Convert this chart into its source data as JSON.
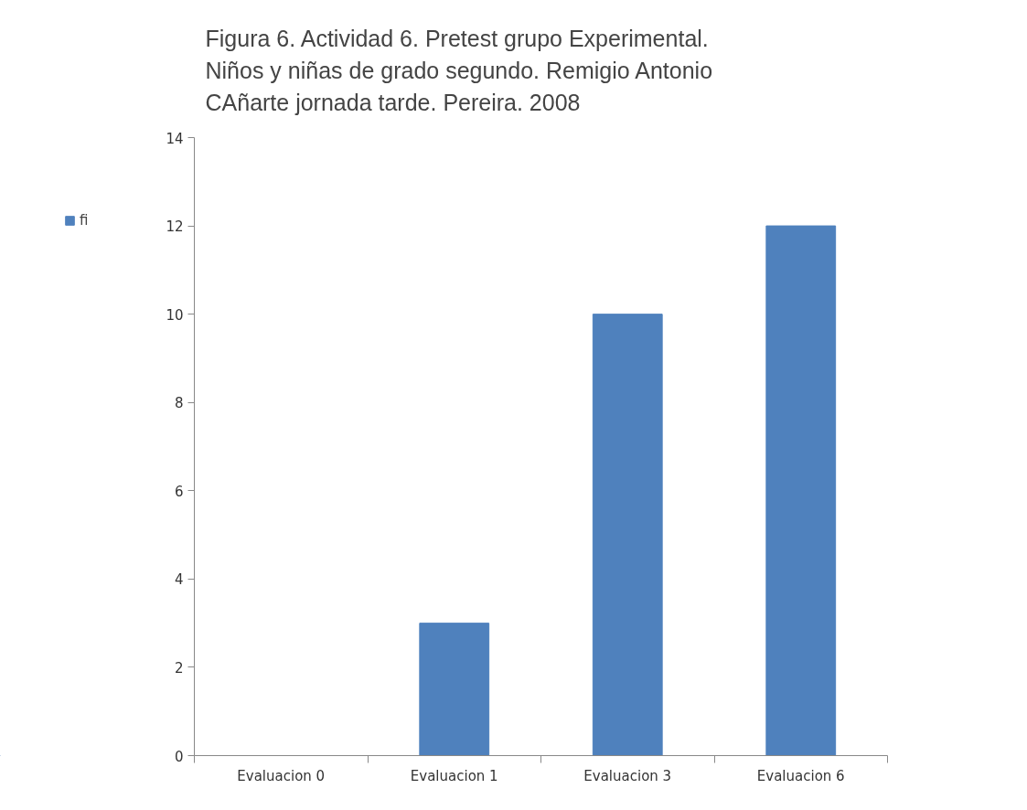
{
  "chart_data": {
    "type": "bar",
    "title": "Figura 6. Actividad 6. Pretest grupo Experimental. Niños y niñas de grado segundo. Remigio Antonio CAñarte jornada tarde. Pereira. 2008",
    "categories": [
      "Evaluacion 0",
      "Evaluacion 1",
      "Evaluacion 3",
      "Evaluacion 6"
    ],
    "series": [
      {
        "name": "fi",
        "color": "#4f81bd",
        "values": [
          0,
          3,
          10,
          12
        ]
      }
    ],
    "ylim": [
      0,
      14
    ],
    "yticks": [
      0,
      2,
      4,
      6,
      8,
      10,
      12,
      14
    ],
    "grid": false,
    "legend": "left"
  }
}
